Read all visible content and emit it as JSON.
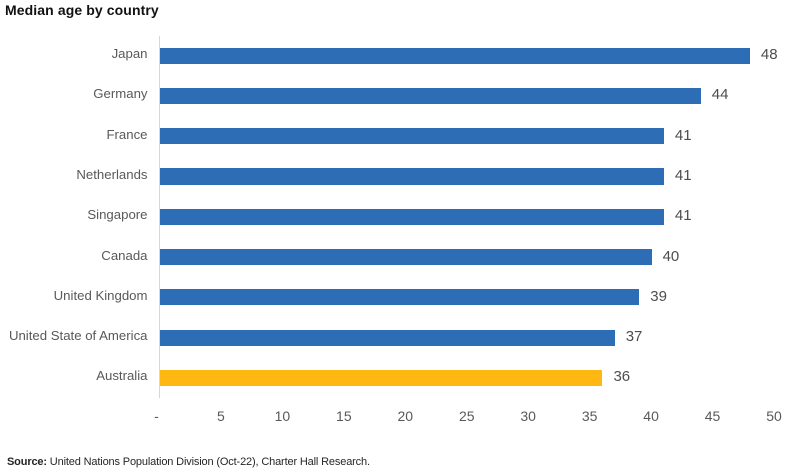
{
  "title": "Median age by country",
  "source": {
    "label": "Source:",
    "text": " United Nations Population Division (Oct-22), Charter Hall Research."
  },
  "chart_data": {
    "type": "bar",
    "orientation": "horizontal",
    "title": "Median age by country",
    "categories": [
      "Japan",
      "Germany",
      "France",
      "Netherlands",
      "Singapore",
      "Canada",
      "United Kingdom",
      "United State of America",
      "Australia"
    ],
    "values": [
      48,
      44,
      41,
      41,
      41,
      40,
      39,
      37,
      36
    ],
    "value_labels": [
      "48",
      "44",
      "41",
      "41",
      "41",
      "40",
      "39",
      "37",
      "36"
    ],
    "bar_colors": [
      "#2d6db6",
      "#2d6db6",
      "#2d6db6",
      "#2d6db6",
      "#2d6db6",
      "#2d6db6",
      "#2d6db6",
      "#2d6db6",
      "#feb811"
    ],
    "highlight_category": "Australia",
    "xlim": [
      0,
      50
    ],
    "xticks": [
      0,
      5,
      10,
      15,
      20,
      25,
      30,
      35,
      40,
      45,
      50
    ],
    "xtick_labels": [
      "-",
      "5",
      "10",
      "15",
      "20",
      "25",
      "30",
      "35",
      "40",
      "45",
      "50"
    ],
    "xlabel": "",
    "ylabel": "",
    "grid": false,
    "legend": false,
    "colors": {
      "bar_blue": "#2d6db6",
      "bar_gold": "#feb811",
      "axis_line": "#d6d6d6",
      "label_gray": "#595959",
      "value_gray": "#4d4d4d",
      "title_color": "#111111"
    }
  }
}
